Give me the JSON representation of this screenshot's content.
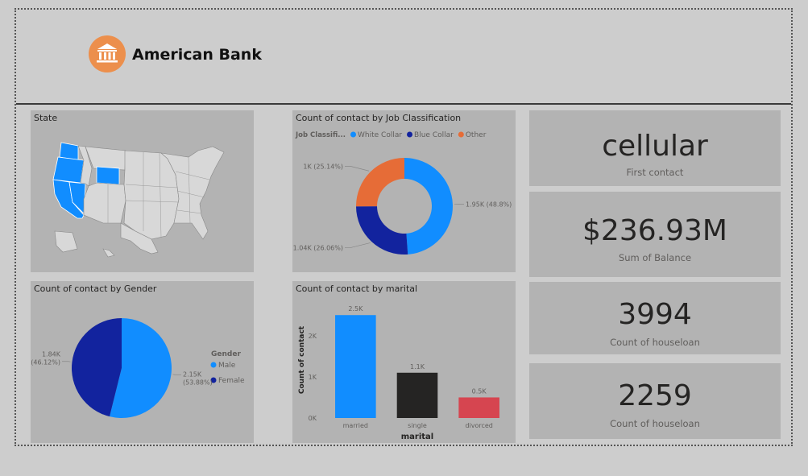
{
  "header": {
    "title": "American Bank",
    "logo_icon": "bank-icon",
    "logo_color": "#ec8f4c"
  },
  "map": {
    "title": "State",
    "highlight_color": "#118dff",
    "highlighted": [
      "Washington",
      "Oregon",
      "California",
      "Nevada",
      "Wyoming"
    ]
  },
  "kpis": [
    {
      "value": "cellular",
      "label": "First contact"
    },
    {
      "value": "$236.93M",
      "label": "Sum of Balance"
    },
    {
      "value": "3994",
      "label": "Count of houseloan"
    },
    {
      "value": "2259",
      "label": "Count of houseloan"
    }
  ],
  "chart_data": [
    {
      "type": "pie",
      "subtype": "donut",
      "title": "Count of contact by Job Classification",
      "legend_title": "Job Classifi...",
      "legend_position": "top",
      "categories": [
        "White Collar",
        "Blue Collar",
        "Other"
      ],
      "values": [
        1950,
        1040,
        1000
      ],
      "value_labels": [
        "1.95K (48.8%)",
        "1.04K (26.06%)",
        "1K (25.14%)"
      ],
      "colors": [
        "#118dff",
        "#12239e",
        "#e66c37"
      ]
    },
    {
      "type": "pie",
      "title": "Count of contact by Gender",
      "legend_title": "Gender",
      "legend_position": "right",
      "categories": [
        "Male",
        "Female"
      ],
      "values": [
        2150,
        1840
      ],
      "value_labels": [
        [
          "2.15K",
          "(53.88%)"
        ],
        [
          "1.84K",
          "(46.12%)"
        ]
      ],
      "colors": [
        "#118dff",
        "#12239e"
      ]
    },
    {
      "type": "bar",
      "title": "Count of contact by marital",
      "xlabel": "marital",
      "ylabel": "Count of contact",
      "categories": [
        "married",
        "single",
        "divorced"
      ],
      "values": [
        2500,
        1100,
        500
      ],
      "value_labels": [
        "2.5K",
        "1.1K",
        "0.5K"
      ],
      "colors": [
        "#118dff",
        "#252423",
        "#d64550"
      ],
      "yticks": [
        0,
        1000,
        2000
      ],
      "ytick_labels": [
        "0K",
        "1K",
        "2K"
      ],
      "ylim": [
        0,
        2700
      ],
      "grid": false
    }
  ]
}
